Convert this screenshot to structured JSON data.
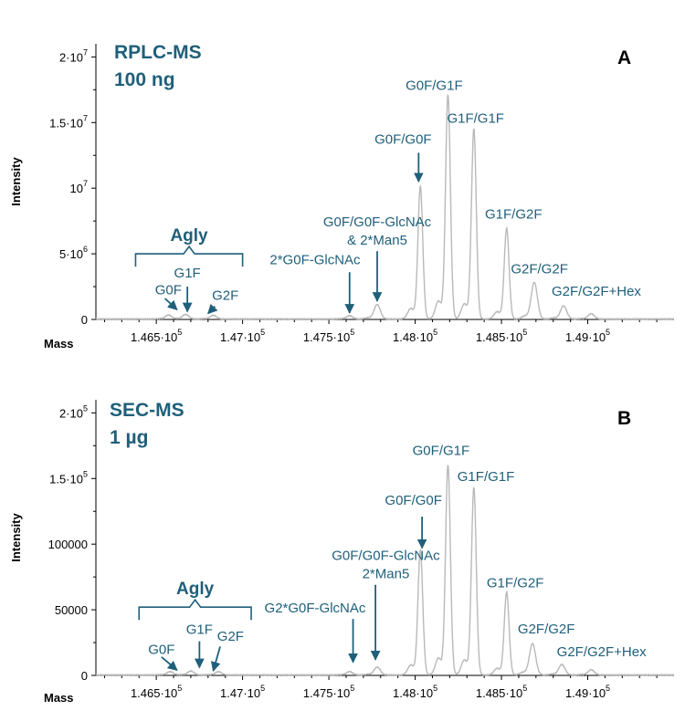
{
  "colors": {
    "trace": "#b9b9b9",
    "annotation": "#1f5f7a",
    "axis": "#000000"
  },
  "chart_data": [
    {
      "type": "line",
      "panel_letter": "A",
      "title_lines": [
        "RPLC-MS",
        "100 ng"
      ],
      "xlabel": "Mass",
      "ylabel": "Intensity",
      "xlim": [
        146150,
        149500
      ],
      "ylim": [
        0,
        21000000
      ],
      "x_ticks": [
        {
          "value": 146500,
          "mantissa": "1.465",
          "exp": "5"
        },
        {
          "value": 147000,
          "mantissa": "1.47",
          "exp": "5"
        },
        {
          "value": 147500,
          "mantissa": "1.475",
          "exp": "5"
        },
        {
          "value": 148000,
          "mantissa": "1.48",
          "exp": "5"
        },
        {
          "value": 148500,
          "mantissa": "1.485",
          "exp": "5"
        },
        {
          "value": 149000,
          "mantissa": "1.49",
          "exp": "5"
        }
      ],
      "y_ticks": [
        {
          "value": 0,
          "mantissa": "0",
          "exp": ""
        },
        {
          "value": 5000000,
          "mantissa": "5·10",
          "exp": "6"
        },
        {
          "value": 10000000,
          "mantissa": "10",
          "exp": "7"
        },
        {
          "value": 15000000,
          "mantissa": "1.5·10",
          "exp": "7"
        },
        {
          "value": 20000000,
          "mantissa": "2·10",
          "exp": "7"
        }
      ],
      "series": [
        {
          "peaks": [
            {
              "x": 146570,
              "y": 300000
            },
            {
              "x": 146670,
              "y": 350000
            },
            {
              "x": 146830,
              "y": 280000
            },
            {
              "x": 147620,
              "y": 250000
            },
            {
              "x": 147780,
              "y": 1100000
            },
            {
              "x": 148030,
              "y": 10100000
            },
            {
              "x": 148190,
              "y": 17100000
            },
            {
              "x": 148340,
              "y": 14500000
            },
            {
              "x": 148530,
              "y": 6900000
            },
            {
              "x": 148690,
              "y": 2800000
            },
            {
              "x": 148860,
              "y": 1000000
            },
            {
              "x": 149020,
              "y": 400000
            }
          ]
        }
      ],
      "group_bracket": {
        "label": "Agly",
        "x_start": 146380,
        "x_end": 147000,
        "y": 5000000
      },
      "annotations": [
        {
          "lines": [
            "G0F"
          ],
          "x": 146570,
          "y": 1900000,
          "arrow": {
            "from": [
              146550,
              1600000
            ],
            "to": [
              146620,
              750000
            ]
          }
        },
        {
          "lines": [
            "G1F"
          ],
          "x": 146680,
          "y": 3200000,
          "arrow": {
            "from": [
              146680,
              2500000
            ],
            "to": [
              146680,
              600000
            ]
          }
        },
        {
          "lines": [
            "G2F"
          ],
          "x": 146900,
          "y": 1500000,
          "arrow": {
            "from": [
              146840,
              1000000
            ],
            "to": [
              146800,
              450000
            ]
          }
        },
        {
          "lines": [
            "2*G0F-GlcNAc"
          ],
          "x": 147420,
          "y": 4200000,
          "arrow": {
            "from": [
              147620,
              3600000
            ],
            "to": [
              147620,
              500000
            ]
          }
        },
        {
          "lines": [
            "G0F/G0F-GlcNAc",
            "& 2*Man5"
          ],
          "x": 147780,
          "y": 7100000,
          "arrow": {
            "from": [
              147780,
              5200000
            ],
            "to": [
              147780,
              1400000
            ]
          }
        },
        {
          "lines": [
            "G0F/G0F"
          ],
          "x": 147930,
          "y": 13400000,
          "arrow": {
            "from": [
              148020,
              12700000
            ],
            "to": [
              148020,
              10500000
            ]
          }
        },
        {
          "lines": [
            "G0F/G1F"
          ],
          "x": 148110,
          "y": 17500000,
          "arrow": null
        },
        {
          "lines": [
            "G1F/G1F"
          ],
          "x": 148350,
          "y": 15000000,
          "arrow": null
        },
        {
          "lines": [
            "G1F/G2F"
          ],
          "x": 148570,
          "y": 7700000,
          "arrow": null
        },
        {
          "lines": [
            "G2F/G2F"
          ],
          "x": 148720,
          "y": 3500000,
          "arrow": null
        },
        {
          "lines": [
            "G2F/G2F+Hex"
          ],
          "x": 149050,
          "y": 1800000,
          "arrow": null
        }
      ]
    },
    {
      "type": "line",
      "panel_letter": "B",
      "title_lines": [
        "SEC-MS",
        "1 µg"
      ],
      "xlabel": "Mass",
      "ylabel": "Intensity",
      "xlim": [
        146150,
        149500
      ],
      "ylim": [
        0,
        210000
      ],
      "x_ticks": [
        {
          "value": 146500,
          "mantissa": "1.465",
          "exp": "5"
        },
        {
          "value": 147000,
          "mantissa": "1.47",
          "exp": "5"
        },
        {
          "value": 147500,
          "mantissa": "1.475",
          "exp": "5"
        },
        {
          "value": 148000,
          "mantissa": "1.48",
          "exp": "5"
        },
        {
          "value": 148500,
          "mantissa": "1.485",
          "exp": "5"
        },
        {
          "value": 149000,
          "mantissa": "1.49",
          "exp": "5"
        }
      ],
      "y_ticks": [
        {
          "value": 0,
          "mantissa": "0",
          "exp": ""
        },
        {
          "value": 50000,
          "mantissa": "50000",
          "exp": ""
        },
        {
          "value": 100000,
          "mantissa": "100000",
          "exp": ""
        },
        {
          "value": 150000,
          "mantissa": "1.5·10",
          "exp": "5"
        },
        {
          "value": 200000,
          "mantissa": "2·10",
          "exp": "5"
        }
      ],
      "series": [
        {
          "peaks": [
            {
              "x": 146580,
              "y": 2500
            },
            {
              "x": 146700,
              "y": 3000
            },
            {
              "x": 146860,
              "y": 2500
            },
            {
              "x": 147620,
              "y": 2500
            },
            {
              "x": 147780,
              "y": 6000
            },
            {
              "x": 148030,
              "y": 95000
            },
            {
              "x": 148190,
              "y": 160000
            },
            {
              "x": 148340,
              "y": 143000
            },
            {
              "x": 148530,
              "y": 63000
            },
            {
              "x": 148680,
              "y": 24000
            },
            {
              "x": 148850,
              "y": 8000
            },
            {
              "x": 149020,
              "y": 4000
            }
          ]
        }
      ],
      "group_bracket": {
        "label": "Agly",
        "x_start": 146400,
        "x_end": 147050,
        "y": 52000
      },
      "annotations": [
        {
          "lines": [
            "G0F"
          ],
          "x": 146530,
          "y": 16500,
          "arrow": {
            "from": [
              146530,
              14000
            ],
            "to": [
              146620,
              4000
            ]
          }
        },
        {
          "lines": [
            "G1F"
          ],
          "x": 146750,
          "y": 31500,
          "arrow": {
            "from": [
              146750,
              26000
            ],
            "to": [
              146750,
              6000
            ]
          }
        },
        {
          "lines": [
            "G2F"
          ],
          "x": 146930,
          "y": 26500,
          "arrow": {
            "from": [
              146870,
              22000
            ],
            "to": [
              146830,
              3500
            ]
          }
        },
        {
          "lines": [
            "G2*G0F-GlcNAc"
          ],
          "x": 147420,
          "y": 48000,
          "arrow": {
            "from": [
              147640,
              43000
            ],
            "to": [
              147640,
              10000
            ]
          }
        },
        {
          "lines": [
            "G0F/G0F-GlcNAc",
            "2*Man5"
          ],
          "x": 147830,
          "y": 88000,
          "arrow": {
            "from": [
              147770,
              69000
            ],
            "to": [
              147770,
              12000
            ]
          }
        },
        {
          "lines": [
            "G0F/G0F"
          ],
          "x": 147990,
          "y": 130000,
          "arrow": {
            "from": [
              148040,
              121000
            ],
            "to": [
              148040,
              97000
            ]
          }
        },
        {
          "lines": [
            "G0F/G1F"
          ],
          "x": 148150,
          "y": 168000,
          "arrow": null
        },
        {
          "lines": [
            "G1F/G1F"
          ],
          "x": 148410,
          "y": 148000,
          "arrow": null
        },
        {
          "lines": [
            "G1F/G2F"
          ],
          "x": 148580,
          "y": 67000,
          "arrow": null
        },
        {
          "lines": [
            "G2F/G2F"
          ],
          "x": 148760,
          "y": 32000,
          "arrow": null
        },
        {
          "lines": [
            "G2F/G2F+Hex"
          ],
          "x": 149080,
          "y": 14500,
          "arrow": null
        }
      ]
    }
  ]
}
